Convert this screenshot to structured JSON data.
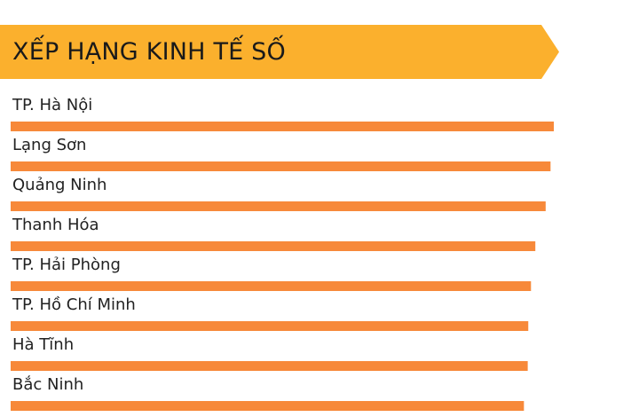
{
  "header": {
    "title": "XẾP HẠNG KINH TẾ SỐ"
  },
  "colors": {
    "banner": "#FBB02D",
    "bar": "#F7893A",
    "text": "#222222"
  },
  "chart_data": {
    "type": "bar",
    "orientation": "horizontal",
    "title": "XẾP HẠNG KINH TẾ SỐ",
    "categories": [
      "TP. Hà Nội",
      "Lạng Sơn",
      "Quảng Ninh",
      "Thanh Hóa",
      "TP. Hải Phòng",
      "TP. Hồ Chí Minh",
      "Hà Tĩnh",
      "Bắc Ninh"
    ],
    "values": [
      100,
      99.4,
      98.5,
      96.6,
      95.8,
      95.3,
      95.2,
      94.5
    ],
    "xlim": [
      0,
      100
    ],
    "grid": false,
    "legend": "none"
  }
}
